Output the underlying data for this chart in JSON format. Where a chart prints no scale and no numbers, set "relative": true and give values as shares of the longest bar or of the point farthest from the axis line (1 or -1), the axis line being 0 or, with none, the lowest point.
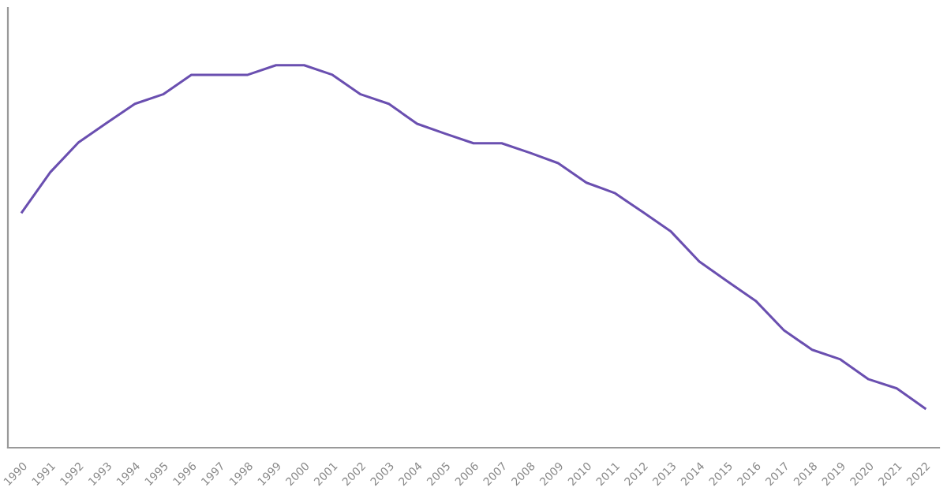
{
  "chart_data": {
    "type": "line",
    "relative": true,
    "grid": false,
    "legend": false,
    "marker": "none",
    "line_style": "solid",
    "tick_labels": "x",
    "categories": [
      "1990",
      "1991",
      "1992",
      "1993",
      "1994",
      "1995",
      "1996",
      "1997",
      "1998",
      "1999",
      "2000",
      "2001",
      "2002",
      "2003",
      "2004",
      "2005",
      "2006",
      "2007",
      "2008",
      "2009",
      "2010",
      "2011",
      "2012",
      "2013",
      "2014",
      "2015",
      "2016",
      "2017",
      "2018",
      "2019",
      "2020",
      "2021",
      "2022"
    ],
    "series": [
      {
        "color": "#6a4fb0",
        "values": [
          0.616,
          0.72,
          0.798,
          0.849,
          0.899,
          0.924,
          0.975,
          0.975,
          0.975,
          1,
          1,
          0.975,
          0.924,
          0.899,
          0.847,
          0.821,
          0.796,
          0.796,
          0.771,
          0.744,
          0.693,
          0.666,
          0.616,
          0.565,
          0.487,
          0.435,
          0.384,
          0.307,
          0.256,
          0.231,
          0.179,
          0.155,
          0.103
        ]
      }
    ]
  }
}
